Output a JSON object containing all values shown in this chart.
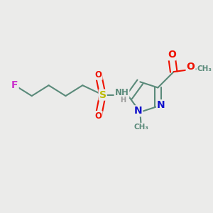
{
  "bg_color": "#ebebea",
  "bond_color": "#5a8a7a",
  "bond_width": 1.5,
  "atom_colors": {
    "F": "#cc33cc",
    "S": "#bbbb00",
    "O": "#ee1100",
    "N": "#1111cc",
    "NH": "#5a8a7a",
    "C": "#5a8a7a",
    "H": "#999999"
  },
  "font_size": 10,
  "small_font_size": 8.5
}
